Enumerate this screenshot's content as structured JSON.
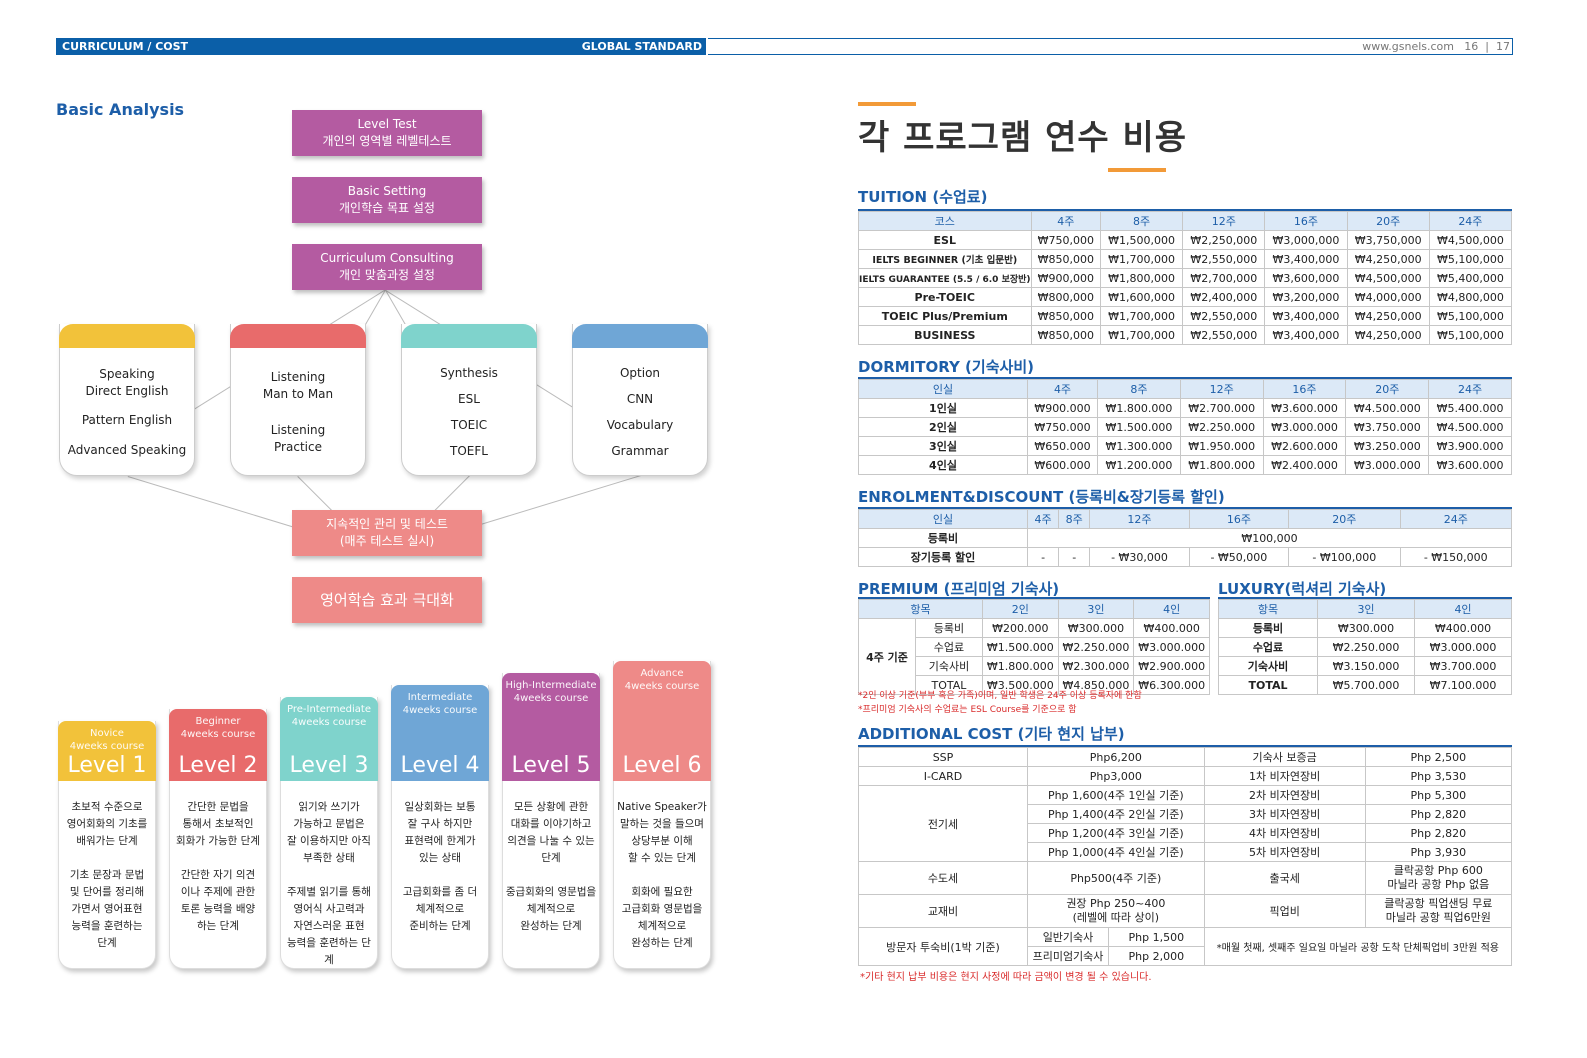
{
  "header": {
    "left_label": "CURRICULUM / COST",
    "center_label": "GLOBAL STANDARD",
    "website": "www.gsnels.com",
    "page_left": "16",
    "page_right": "17"
  },
  "analysis": {
    "title": "Basic Analysis",
    "steps": [
      {
        "en": "Level Test",
        "ko": "개인의 영역별 레벨테스트"
      },
      {
        "en": "Basic Setting",
        "ko": "개인학습 목표 설정"
      },
      {
        "en": "Curriculum Consulting",
        "ko": "개인 맞춤과정 설정"
      }
    ],
    "cards": [
      {
        "items": [
          "Speaking Direct English",
          "Pattern English",
          "Advanced Speaking"
        ],
        "color": "#f2c23a"
      },
      {
        "items": [
          "Listening Man to Man",
          "Listening Practice"
        ],
        "color": "#e86b6b"
      },
      {
        "items": [
          "Synthesis",
          "ESL",
          "TOEIC",
          "TOEFL"
        ],
        "color": "#7fd3cc"
      },
      {
        "items": [
          "Option",
          "CNN",
          "Vocabulary",
          "Grammar"
        ],
        "color": "#6fa6d6"
      }
    ],
    "manage": {
      "line1": "지속적인 관리 및 테스트",
      "line2": "(매주 테스트 실시)"
    },
    "result": "영어학습 효과 극대화"
  },
  "levels": [
    {
      "sub1": "Novice",
      "sub2": "4weeks course",
      "name": "Level 1",
      "color": "#f2c23a",
      "desc1": [
        "초보적 수준으로",
        "영어회화의 기초를",
        "배워가는 단계"
      ],
      "desc2": [
        "기초 문장과 문법",
        "및 단어를 정리해",
        "가면서 영어표현",
        "능력을 훈련하는",
        "단계"
      ]
    },
    {
      "sub1": "Beginner",
      "sub2": "4weeks course",
      "name": "Level 2",
      "color": "#e86b6b",
      "desc1": [
        "간단한 문법을",
        "통해서 초보적인",
        "회화가 가능한 단계"
      ],
      "desc2": [
        "간단한 자기 의견",
        "이나 주제에 관한",
        "토론 능력을 배양",
        "하는 단계"
      ]
    },
    {
      "sub1": "Pre-Intermediate",
      "sub2": "4weeks course",
      "name": "Level 3",
      "color": "#7fd3cc",
      "desc1": [
        "읽기와 쓰기가",
        "가능하고 문법은",
        "잘 이용하지만 아직",
        "부족한 상태"
      ],
      "desc2": [
        "주제별 읽기를 통해",
        "영어식 사고력과",
        "자연스러운 표현",
        "능력을 훈련하는 단계"
      ]
    },
    {
      "sub1": "Intermediate",
      "sub2": "4weeks course",
      "name": "Level 4",
      "color": "#6fa6d6",
      "desc1": [
        "일상회화는 보통",
        "잘 구사 하지만",
        "표현력에 한계가",
        "있는 상태"
      ],
      "desc2": [
        "고급회화를 좀 더",
        "체계적으로",
        "준비하는 단계"
      ]
    },
    {
      "sub1": "High-Intermediate",
      "sub2": "4weeks course",
      "name": "Level 5",
      "color": "#b45ba1",
      "desc1": [
        "모든 상황에 관한",
        "대화를 이야기하고",
        "의견을 나눌 수 있는",
        "단계"
      ],
      "desc2": [
        "중급회화의 영문법을",
        "체계적으로",
        "완성하는 단계"
      ]
    },
    {
      "sub1": "Advance",
      "sub2": "4weeks course",
      "name": "Level 6",
      "color": "#ee8a88",
      "desc1": [
        "Native Speaker가",
        "말하는 것을 들으며",
        "상당부분 이해",
        "할 수 있는 단계"
      ],
      "desc2": [
        "회화에 필요한",
        "고급회화 영문법을",
        "체계적으로",
        "완성하는 단계"
      ]
    }
  ],
  "cost": {
    "title": "각 프로그램 연수 비용",
    "tuition": {
      "title": "TUITION (수업료)",
      "headers": [
        "코스",
        "4주",
        "8주",
        "12주",
        "16주",
        "20주",
        "24주"
      ],
      "rows": [
        [
          "ESL",
          "₩750,000",
          "₩1,500,000",
          "₩2,250,000",
          "₩3,000,000",
          "₩3,750,000",
          "₩4,500,000"
        ],
        [
          "IELTS BEGINNER (기초 입문반)",
          "₩850,000",
          "₩1,700,000",
          "₩2,550,000",
          "₩3,400,000",
          "₩4,250,000",
          "₩5,100,000"
        ],
        [
          "IELTS GUARANTEE (5.5 / 6.0 보장반)",
          "₩900,000",
          "₩1,800,000",
          "₩2,700,000",
          "₩3,600,000",
          "₩4,500,000",
          "₩5,400,000"
        ],
        [
          "Pre-TOEIC",
          "₩800,000",
          "₩1,600,000",
          "₩2,400,000",
          "₩3,200,000",
          "₩4,000,000",
          "₩4,800,000"
        ],
        [
          "TOEIC Plus/Premium",
          "₩850,000",
          "₩1,700,000",
          "₩2,550,000",
          "₩3,400,000",
          "₩4,250,000",
          "₩5,100,000"
        ],
        [
          "BUSINESS",
          "₩850,000",
          "₩1,700,000",
          "₩2,550,000",
          "₩3,400,000",
          "₩4,250,000",
          "₩5,100,000"
        ]
      ]
    },
    "dormitory": {
      "title": "DORMITORY (기숙사비)",
      "headers": [
        "인실",
        "4주",
        "8주",
        "12주",
        "16주",
        "20주",
        "24주"
      ],
      "rows": [
        [
          "1인실",
          "₩900.000",
          "₩1.800.000",
          "₩2.700.000",
          "₩3.600.000",
          "₩4.500.000",
          "₩5.400.000"
        ],
        [
          "2인실",
          "₩750.000",
          "₩1.500.000",
          "₩2.250.000",
          "₩3.000.000",
          "₩3.750.000",
          "₩4.500.000"
        ],
        [
          "3인실",
          "₩650.000",
          "₩1.300.000",
          "₩1.950.000",
          "₩2.600.000",
          "₩3.250.000",
          "₩3.900.000"
        ],
        [
          "4인실",
          "₩600.000",
          "₩1.200.000",
          "₩1.800.000",
          "₩2.400.000",
          "₩3.000.000",
          "₩3.600.000"
        ]
      ]
    },
    "enrolment": {
      "title": "ENROLMENT&DISCOUNT (등록비&장기등록 할인)",
      "headers": [
        "인실",
        "4주",
        "8주",
        "12주",
        "16주",
        "20주",
        "24주"
      ],
      "fee_label": "등록비",
      "fee_value": "₩100,000",
      "discount_label": "장기등록 할인",
      "discount_values": [
        "-",
        "-",
        "- ₩30,000",
        "- ₩50,000",
        "- ₩100,000",
        "- ₩150,000"
      ]
    },
    "premium": {
      "title": "PREMIUM (프리미엄 기숙사)",
      "headers": [
        "항목",
        "2인",
        "3인",
        "4인"
      ],
      "group_label": "4주 기준",
      "rows": [
        [
          "등록비",
          "₩200.000",
          "₩300.000",
          "₩400.000"
        ],
        [
          "수업료",
          "₩1.500.000",
          "₩2.250.000",
          "₩3.000.000"
        ],
        [
          "기숙사비",
          "₩1.800.000",
          "₩2.300.000",
          "₩2.900.000"
        ],
        [
          "TOTAL",
          "₩3.500.000",
          "₩4.850.000",
          "₩6.300.000"
        ]
      ]
    },
    "luxury": {
      "title": "LUXURY(럭셔리 기숙사)",
      "headers": [
        "항목",
        "3인",
        "4인"
      ],
      "rows": [
        [
          "등록비",
          "₩300.000",
          "₩400.000"
        ],
        [
          "수업료",
          "₩2.250.000",
          "₩3.000.000"
        ],
        [
          "기숙사비",
          "₩3.150.000",
          "₩3.700.000"
        ],
        [
          "TOTAL",
          "₩5.700.000",
          "₩7.100.000"
        ]
      ]
    },
    "notes": [
      "*2인 이상 기준(부부 혹은 가족)이며, 일반 학생은 24주 이상 등록자에 한함",
      "*프리미엄 기숙사의 수업료는 ESL Course를 기준으로 함"
    ],
    "additional": {
      "title": "ADDITIONAL COST (기타 현지 납부)",
      "ssp": [
        "SSP",
        "Php6,200"
      ],
      "icard": [
        "I-CARD",
        "Php3,000"
      ],
      "electric_label": "전기세",
      "electric": [
        "Php 1,600(4주 1인실 기준)",
        "Php 1,400(4주 2인실 기준)",
        "Php 1,200(4주 3인실 기준)",
        "Php 1,000(4주 4인실 기준)"
      ],
      "water": [
        "수도세",
        "Php500(4주 기준)"
      ],
      "book": [
        "교재비",
        "권장 Php 250~400",
        "(레벨에 따라 상이)"
      ],
      "visitor_label": "방문자 투숙비(1박 기준)",
      "visitor": [
        [
          "일반기숙사",
          "Php 1,500"
        ],
        [
          "프리미엄기숙사",
          "Php 2,000"
        ]
      ],
      "right": [
        [
          "기숙사 보증금",
          "Php 2,500"
        ],
        [
          "1차 비자연장비",
          "Php 3,530"
        ],
        [
          "2차 비자연장비",
          "Php 5,300"
        ],
        [
          "3차 비자연장비",
          "Php 2,820"
        ],
        [
          "4차 비자연장비",
          "Php 2,820"
        ],
        [
          "5차 비자연장비",
          "Php 3,930"
        ]
      ],
      "departure": [
        "출국세",
        "클락공항 Php 600",
        "마닐라 공항 Php 없음"
      ],
      "pickup": [
        "픽업비",
        "클락공항 픽업샌딩 무료",
        "마닐라 공항 픽업6만원"
      ],
      "pickup_note": "*매월 첫째, 셋째주 일요일 마닐라 공항 도착 단체픽업비 3만원 적용",
      "footer_note": "*기타 현지 납부 비용은 현지 사정에 따라 금액이 변경 될 수 있습니다."
    }
  }
}
